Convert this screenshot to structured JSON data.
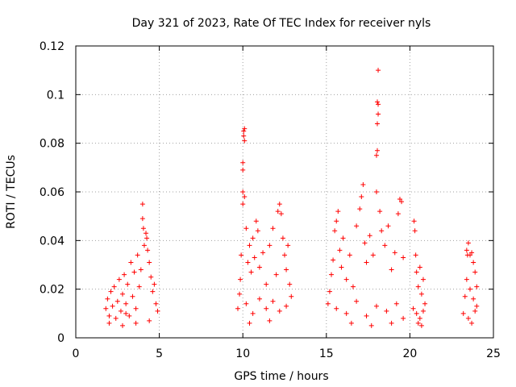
{
  "chart_data": {
    "type": "scatter",
    "title": "Day 321 of 2023, Rate Of TEC Index for receiver nyls",
    "xlabel": "GPS time / hours",
    "ylabel": "ROTI / TECUs",
    "xlim": [
      0,
      25
    ],
    "ylim": [
      0,
      0.12
    ],
    "x_ticks": [
      0,
      5,
      10,
      15,
      20,
      25
    ],
    "y_ticks": [
      0,
      0.02,
      0.04,
      0.06,
      0.08,
      0.1,
      0.12
    ],
    "x_tick_labels": [
      "0",
      "5",
      "10",
      "15",
      "20",
      "25"
    ],
    "y_tick_labels": [
      "0",
      "0.02",
      "0.04",
      "0.06",
      "0.08",
      "0.1",
      "0.12"
    ],
    "grid": true,
    "marker": "+",
    "marker_color": "#ff0000",
    "series": [
      {
        "points": [
          [
            1.8,
            0.012
          ],
          [
            1.9,
            0.016
          ],
          [
            2.0,
            0.009
          ],
          [
            2.1,
            0.019
          ],
          [
            2.2,
            0.013
          ],
          [
            2.3,
            0.021
          ],
          [
            2.4,
            0.008
          ],
          [
            2.5,
            0.015
          ],
          [
            2.6,
            0.024
          ],
          [
            2.7,
            0.011
          ],
          [
            2.8,
            0.018
          ],
          [
            2.9,
            0.026
          ],
          [
            3.0,
            0.014
          ],
          [
            3.1,
            0.022
          ],
          [
            3.2,
            0.009
          ],
          [
            3.3,
            0.031
          ],
          [
            3.4,
            0.017
          ],
          [
            3.5,
            0.027
          ],
          [
            3.6,
            0.012
          ],
          [
            3.7,
            0.034
          ],
          [
            3.8,
            0.021
          ],
          [
            3.9,
            0.028
          ],
          [
            4.0,
            0.055
          ],
          [
            4.0,
            0.049
          ],
          [
            4.05,
            0.045
          ],
          [
            4.1,
            0.038
          ],
          [
            4.2,
            0.043
          ],
          [
            4.25,
            0.041
          ],
          [
            4.3,
            0.036
          ],
          [
            4.4,
            0.031
          ],
          [
            4.5,
            0.025
          ],
          [
            4.6,
            0.019
          ],
          [
            4.7,
            0.022
          ],
          [
            4.8,
            0.014
          ],
          [
            4.9,
            0.011
          ],
          [
            2.0,
            0.006
          ],
          [
            2.8,
            0.005
          ],
          [
            3.6,
            0.006
          ],
          [
            4.4,
            0.007
          ],
          [
            3.0,
            0.01
          ],
          [
            9.7,
            0.012
          ],
          [
            9.8,
            0.018
          ],
          [
            9.85,
            0.024
          ],
          [
            9.9,
            0.034
          ],
          [
            10.0,
            0.072
          ],
          [
            10.0,
            0.069
          ],
          [
            10.05,
            0.085
          ],
          [
            10.05,
            0.083
          ],
          [
            10.1,
            0.086
          ],
          [
            10.1,
            0.081
          ],
          [
            10.0,
            0.06
          ],
          [
            10.1,
            0.058
          ],
          [
            10.0,
            0.055
          ],
          [
            10.2,
            0.045
          ],
          [
            10.3,
            0.031
          ],
          [
            10.4,
            0.038
          ],
          [
            10.5,
            0.027
          ],
          [
            10.6,
            0.041
          ],
          [
            10.7,
            0.033
          ],
          [
            10.8,
            0.048
          ],
          [
            10.9,
            0.044
          ],
          [
            11.0,
            0.029
          ],
          [
            11.2,
            0.035
          ],
          [
            11.4,
            0.022
          ],
          [
            11.6,
            0.038
          ],
          [
            11.8,
            0.045
          ],
          [
            12.0,
            0.026
          ],
          [
            12.1,
            0.052
          ],
          [
            12.2,
            0.055
          ],
          [
            12.3,
            0.051
          ],
          [
            12.4,
            0.041
          ],
          [
            12.5,
            0.034
          ],
          [
            12.6,
            0.028
          ],
          [
            12.7,
            0.038
          ],
          [
            12.8,
            0.022
          ],
          [
            12.9,
            0.017
          ],
          [
            10.2,
            0.014
          ],
          [
            10.6,
            0.01
          ],
          [
            11.0,
            0.016
          ],
          [
            11.4,
            0.012
          ],
          [
            11.8,
            0.015
          ],
          [
            12.2,
            0.011
          ],
          [
            12.6,
            0.013
          ],
          [
            10.4,
            0.006
          ],
          [
            11.6,
            0.007
          ],
          [
            15.1,
            0.014
          ],
          [
            15.2,
            0.019
          ],
          [
            15.3,
            0.026
          ],
          [
            15.4,
            0.032
          ],
          [
            15.5,
            0.044
          ],
          [
            15.6,
            0.048
          ],
          [
            15.7,
            0.052
          ],
          [
            15.8,
            0.036
          ],
          [
            15.9,
            0.029
          ],
          [
            16.0,
            0.041
          ],
          [
            16.2,
            0.024
          ],
          [
            16.4,
            0.034
          ],
          [
            16.6,
            0.021
          ],
          [
            16.8,
            0.046
          ],
          [
            17.0,
            0.053
          ],
          [
            17.1,
            0.058
          ],
          [
            17.2,
            0.063
          ],
          [
            17.3,
            0.039
          ],
          [
            17.4,
            0.031
          ],
          [
            17.6,
            0.042
          ],
          [
            17.8,
            0.034
          ],
          [
            18.0,
            0.075
          ],
          [
            18.05,
            0.077
          ],
          [
            18.05,
            0.088
          ],
          [
            18.1,
            0.092
          ],
          [
            18.1,
            0.096
          ],
          [
            18.05,
            0.097
          ],
          [
            18.1,
            0.11
          ],
          [
            18.0,
            0.06
          ],
          [
            18.2,
            0.052
          ],
          [
            18.3,
            0.044
          ],
          [
            18.5,
            0.038
          ],
          [
            18.7,
            0.046
          ],
          [
            18.9,
            0.028
          ],
          [
            19.1,
            0.035
          ],
          [
            19.3,
            0.051
          ],
          [
            19.4,
            0.057
          ],
          [
            19.5,
            0.056
          ],
          [
            19.6,
            0.033
          ],
          [
            15.6,
            0.012
          ],
          [
            16.2,
            0.01
          ],
          [
            16.8,
            0.015
          ],
          [
            17.4,
            0.009
          ],
          [
            18.0,
            0.013
          ],
          [
            18.6,
            0.011
          ],
          [
            19.2,
            0.014
          ],
          [
            16.5,
            0.006
          ],
          [
            17.7,
            0.005
          ],
          [
            18.9,
            0.006
          ],
          [
            19.6,
            0.008
          ],
          [
            20.2,
            0.012
          ],
          [
            20.25,
            0.048
          ],
          [
            20.3,
            0.044
          ],
          [
            20.35,
            0.034
          ],
          [
            20.4,
            0.027
          ],
          [
            20.5,
            0.021
          ],
          [
            20.6,
            0.029
          ],
          [
            20.7,
            0.018
          ],
          [
            20.8,
            0.024
          ],
          [
            20.9,
            0.014
          ],
          [
            20.4,
            0.01
          ],
          [
            20.6,
            0.008
          ],
          [
            20.8,
            0.011
          ],
          [
            20.5,
            0.006
          ],
          [
            20.7,
            0.005
          ],
          [
            23.2,
            0.01
          ],
          [
            23.3,
            0.017
          ],
          [
            23.4,
            0.036
          ],
          [
            23.45,
            0.034
          ],
          [
            23.5,
            0.039
          ],
          [
            23.6,
            0.034
          ],
          [
            23.7,
            0.035
          ],
          [
            23.8,
            0.031
          ],
          [
            23.9,
            0.027
          ],
          [
            24.0,
            0.021
          ],
          [
            23.4,
            0.024
          ],
          [
            23.6,
            0.02
          ],
          [
            23.8,
            0.016
          ],
          [
            23.5,
            0.008
          ],
          [
            23.7,
            0.006
          ],
          [
            23.9,
            0.011
          ],
          [
            24.0,
            0.013
          ]
        ]
      }
    ]
  }
}
